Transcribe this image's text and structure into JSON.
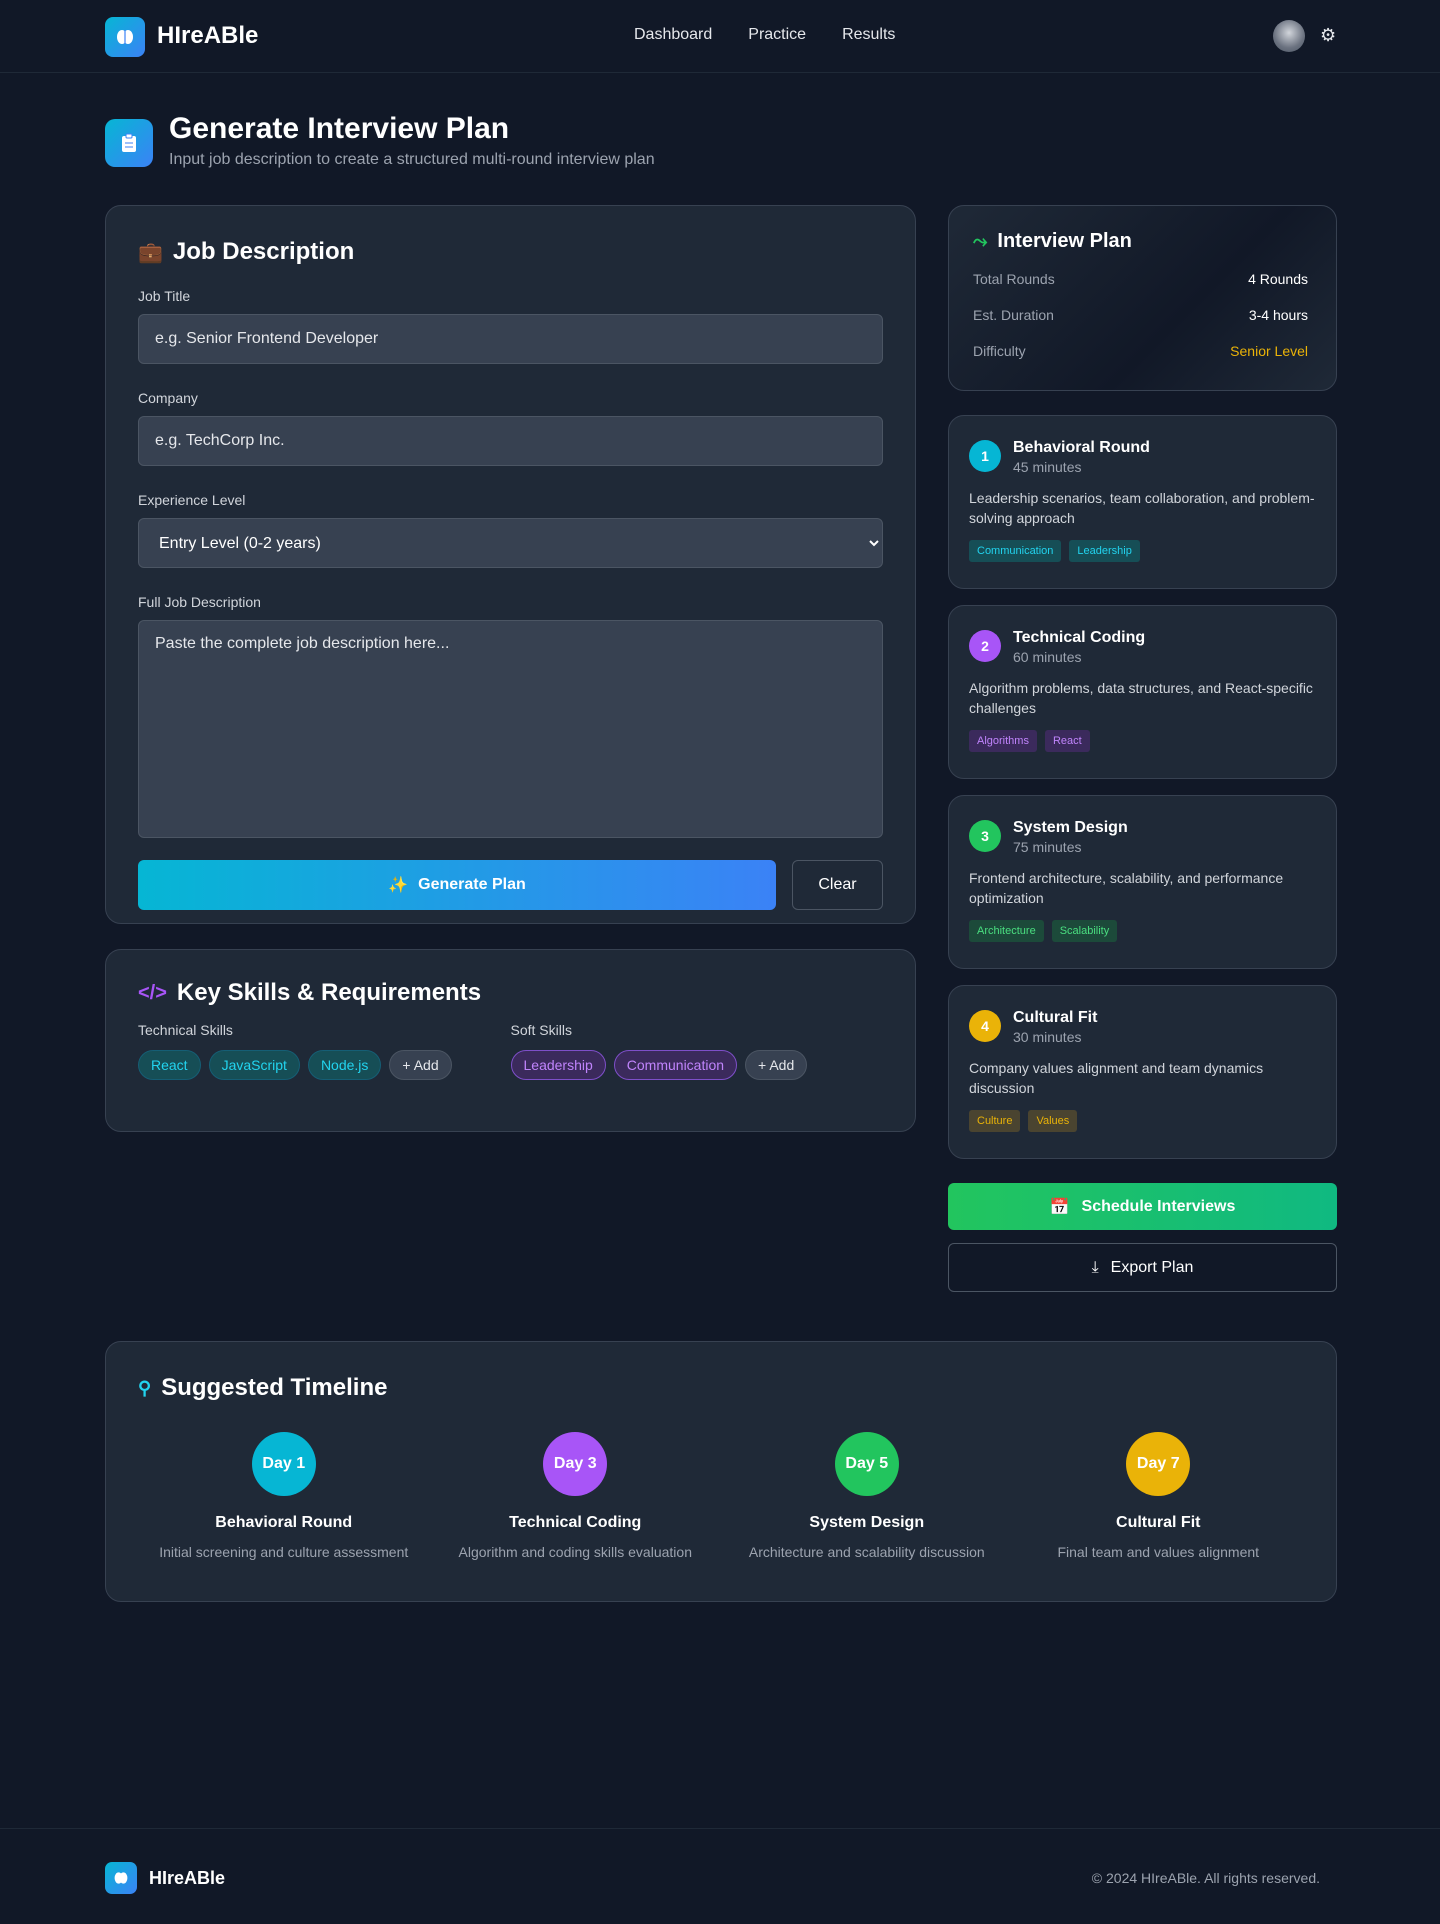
{
  "header": {
    "brand": "HIreABle",
    "nav": [
      "Dashboard",
      "Practice",
      "Results"
    ]
  },
  "page": {
    "title": "Generate Interview Plan",
    "subtitle": "Input job description to create a structured multi-round interview plan"
  },
  "job_form": {
    "heading": "Job Description",
    "job_title_label": "Job Title",
    "job_title_placeholder": "e.g. Senior Frontend Developer",
    "job_title_value": "",
    "company_label": "Company",
    "company_placeholder": "e.g. TechCorp Inc.",
    "company_value": "",
    "experience_label": "Experience Level",
    "experience_selected": "Entry Level (0-2 years)",
    "description_label": "Full Job Description",
    "description_placeholder": "Paste the complete job description here...",
    "description_value": "",
    "generate_label": "Generate Plan",
    "clear_label": "Clear"
  },
  "skills": {
    "heading": "Key Skills & Requirements",
    "technical_label": "Technical Skills",
    "technical": [
      "React",
      "JavaScript",
      "Node.js"
    ],
    "soft_label": "Soft Skills",
    "soft": [
      "Leadership",
      "Communication"
    ],
    "add_label": "+ Add"
  },
  "plan": {
    "heading": "Interview Plan",
    "rows": [
      {
        "k": "Total Rounds",
        "v": "4 Rounds"
      },
      {
        "k": "Est. Duration",
        "v": "3-4 hours"
      },
      {
        "k": "Difficulty",
        "v": "Senior Level"
      }
    ],
    "difficulty_color": "#eab308"
  },
  "rounds": [
    {
      "num": "1",
      "title": "Behavioral Round",
      "duration": "45 minutes",
      "desc": "Leadership scenarios, team collaboration, and problem-solving approach",
      "tags": [
        "Communication",
        "Leadership"
      ],
      "color": "#06b6d4",
      "tag_bg": "#164e56",
      "tag_fg": "#22d3ee"
    },
    {
      "num": "2",
      "title": "Technical Coding",
      "duration": "60 minutes",
      "desc": "Algorithm problems, data structures, and React-specific challenges",
      "tags": [
        "Algorithms",
        "React"
      ],
      "color": "#a855f7",
      "tag_bg": "#3b2a5c",
      "tag_fg": "#c084fc"
    },
    {
      "num": "3",
      "title": "System Design",
      "duration": "75 minutes",
      "desc": "Frontend architecture, scalability, and performance optimization",
      "tags": [
        "Architecture",
        "Scalability"
      ],
      "color": "#22c55e",
      "tag_bg": "#1c4a3a",
      "tag_fg": "#4ade80"
    },
    {
      "num": "4",
      "title": "Cultural Fit",
      "duration": "30 minutes",
      "desc": "Company values alignment and team dynamics discussion",
      "tags": [
        "Culture",
        "Values"
      ],
      "color": "#eab308",
      "tag_bg": "#4a4430",
      "tag_fg": "#eab308"
    }
  ],
  "actions": {
    "schedule_label": "Schedule Interviews",
    "export_label": "Export Plan"
  },
  "timeline": {
    "heading": "Suggested Timeline",
    "steps": [
      {
        "day": "Day 1",
        "title": "Behavioral Round",
        "desc": "Initial screening and culture assessment",
        "color": "#06b6d4"
      },
      {
        "day": "Day 3",
        "title": "Technical Coding",
        "desc": "Algorithm and coding skills evaluation",
        "color": "#a855f7"
      },
      {
        "day": "Day 5",
        "title": "System Design",
        "desc": "Architecture and scalability discussion",
        "color": "#22c55e"
      },
      {
        "day": "Day 7",
        "title": "Cultural Fit",
        "desc": "Final team and values alignment",
        "color": "#eab308"
      }
    ]
  },
  "footer": {
    "brand": "HIreABle",
    "copyright": "© 2024 HIreABle. All rights reserved."
  }
}
